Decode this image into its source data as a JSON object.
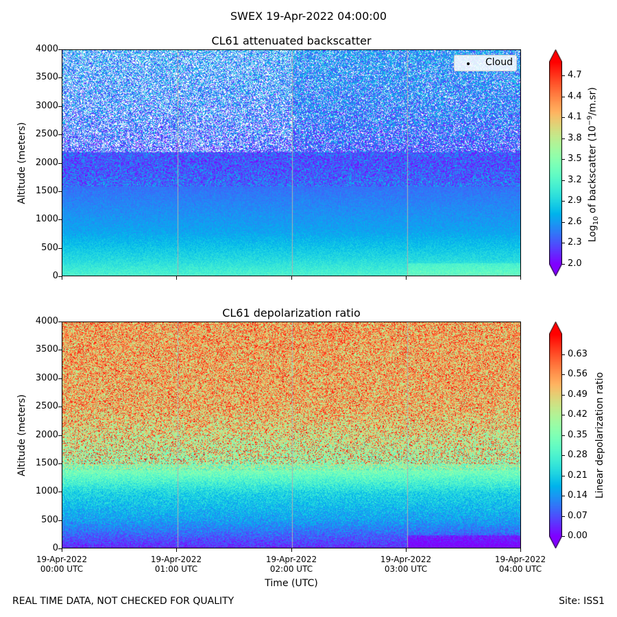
{
  "figure": {
    "suptitle": "SWEX 19-Apr-2022 04:00:00",
    "xlabel": "Time (UTC)",
    "footer_left": "REAL TIME DATA, NOT CHECKED FOR QUALITY",
    "footer_right": "Site: ISS1"
  },
  "x_ticks": [
    {
      "line1": "19-Apr-2022",
      "line2": "00:00 UTC"
    },
    {
      "line1": "19-Apr-2022",
      "line2": "01:00 UTC"
    },
    {
      "line1": "19-Apr-2022",
      "line2": "02:00 UTC"
    },
    {
      "line1": "19-Apr-2022",
      "line2": "03:00 UTC"
    },
    {
      "line1": "19-Apr-2022",
      "line2": "04:00 UTC"
    }
  ],
  "chart_data": [
    {
      "type": "heatmap",
      "title": "CL61 attenuated backscatter",
      "ylabel": "Altitude (meters)",
      "xlabel": "",
      "x_range_hours": [
        0,
        4
      ],
      "ylim": [
        0,
        4000
      ],
      "y_ticks": [
        "0",
        "500",
        "1000",
        "1500",
        "2000",
        "2500",
        "3000",
        "3500",
        "4000"
      ],
      "colorbar": {
        "label": "Log10 of backscatter (10^-9/m.sr)",
        "label_parts": {
          "pre": "Log",
          "sub": "10",
          "mid": " of backscatter (10",
          "sup": "−9",
          "post": "/m.sr)"
        },
        "vmin": 2.0,
        "vmax": 4.9,
        "ticks": [
          "2.0",
          "2.3",
          "2.6",
          "2.9",
          "3.2",
          "3.5",
          "3.8",
          "4.1",
          "4.4",
          "4.7"
        ],
        "extend": "both",
        "colormap": "rainbow"
      },
      "legend": {
        "entries": [
          "Cloud"
        ],
        "placement": "top-right"
      },
      "description_profile": [
        {
          "altitude": 0,
          "value": 3.2
        },
        {
          "altitude": 300,
          "value": 2.95
        },
        {
          "altitude": 800,
          "value": 2.65
        },
        {
          "altitude": 1500,
          "value": 2.45
        },
        {
          "altitude": 2000,
          "value": 2.3
        },
        {
          "altitude": 3000,
          "value": 2.5
        },
        {
          "altitude": 4000,
          "value": 2.6
        }
      ]
    },
    {
      "type": "heatmap",
      "title": "CL61 depolarization ratio",
      "ylabel": "Altitude (meters)",
      "xlabel": "Time (UTC)",
      "x_range_hours": [
        0,
        4
      ],
      "ylim": [
        0,
        4000
      ],
      "y_ticks": [
        "0",
        "500",
        "1000",
        "1500",
        "2000",
        "2500",
        "3000",
        "3500",
        "4000"
      ],
      "colorbar": {
        "label": "Linear depolarization ratio",
        "vmin": 0.0,
        "vmax": 0.7,
        "ticks": [
          "0.00",
          "0.07",
          "0.14",
          "0.21",
          "0.28",
          "0.35",
          "0.42",
          "0.49",
          "0.56",
          "0.63"
        ],
        "extend": "both",
        "colormap": "rainbow"
      },
      "description_profile": [
        {
          "altitude": 0,
          "value": 0.03
        },
        {
          "altitude": 500,
          "value": 0.15
        },
        {
          "altitude": 1000,
          "value": 0.22
        },
        {
          "altitude": 1500,
          "value": 0.38
        },
        {
          "altitude": 2500,
          "value": 0.5
        },
        {
          "altitude": 4000,
          "value": 0.52
        }
      ]
    }
  ],
  "colors": {
    "axis": "#000000",
    "gridline": "#b0b0b0",
    "background": "#ffffff"
  }
}
